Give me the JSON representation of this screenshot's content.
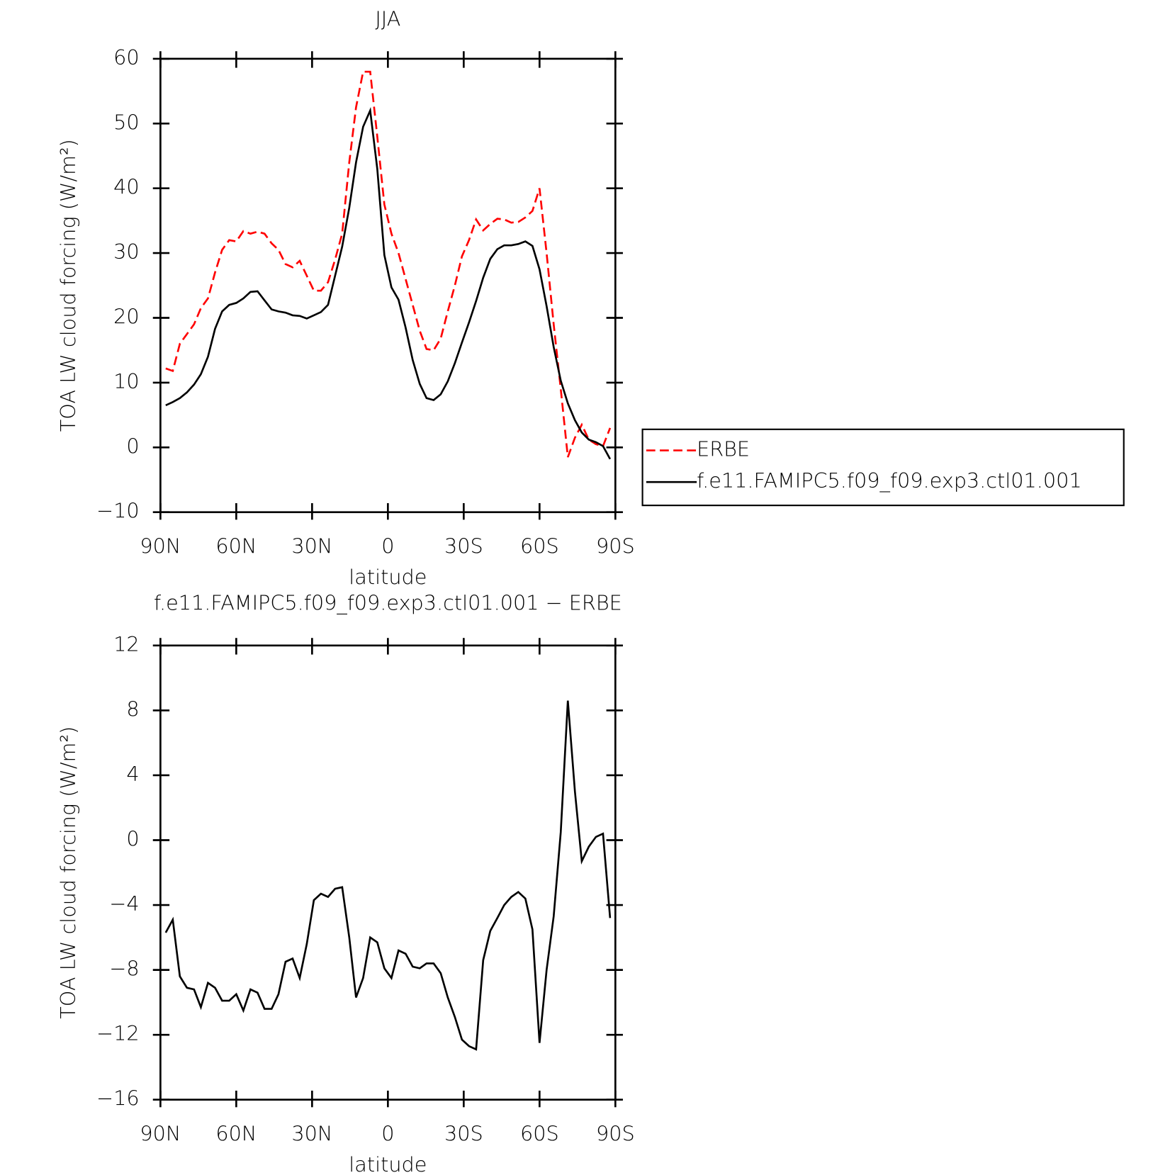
{
  "chart_data": [
    {
      "type": "line",
      "title": "JJA",
      "x_label": "latitude",
      "y_label": "TOA LW cloud forcing (W/m²)",
      "x": [
        87.9,
        85.1,
        82.3,
        79.5,
        76.7,
        74.0,
        71.2,
        68.4,
        65.6,
        62.8,
        60.0,
        57.2,
        54.4,
        51.6,
        48.8,
        46.0,
        43.3,
        40.5,
        37.7,
        34.9,
        32.1,
        29.3,
        26.5,
        23.7,
        20.9,
        18.1,
        15.3,
        12.6,
        9.8,
        7.0,
        4.2,
        1.4,
        -1.4,
        -4.2,
        -7.0,
        -9.8,
        -12.6,
        -15.3,
        -18.1,
        -20.9,
        -23.7,
        -26.5,
        -29.3,
        -32.1,
        -34.9,
        -37.7,
        -40.5,
        -43.3,
        -46.0,
        -48.8,
        -51.6,
        -54.4,
        -57.2,
        -60.0,
        -62.8,
        -65.6,
        -68.4,
        -71.2,
        -74.0,
        -76.7,
        -79.5,
        -82.3,
        -85.1,
        -87.9
      ],
      "xlim": [
        90,
        -90
      ],
      "xticks": [
        {
          "value": 90,
          "label": "90N"
        },
        {
          "value": 60,
          "label": "60N"
        },
        {
          "value": 30,
          "label": "30N"
        },
        0,
        {
          "value": -30,
          "label": "30S"
        },
        {
          "value": -60,
          "label": "60S"
        },
        {
          "value": -90,
          "label": "90S"
        }
      ],
      "ylim": [
        -10,
        60
      ],
      "yticks": [
        {
          "value": -10,
          "label": "−10"
        },
        0,
        10,
        20,
        30,
        40,
        50,
        60
      ],
      "legend": "right",
      "series": [
        {
          "name": "ERBE",
          "color": "#ff0000",
          "linestyle": "dashed",
          "values": [
            12.2,
            11.8,
            16,
            17.5,
            19,
            21.5,
            23,
            27,
            30.5,
            32,
            31.8,
            33.4,
            33,
            33.3,
            33,
            31.5,
            30.5,
            28.3,
            27.8,
            28.8,
            26.5,
            24.2,
            24.2,
            25.5,
            29,
            33,
            44,
            52.5,
            58,
            58,
            48,
            37.5,
            33,
            30,
            26,
            22,
            18,
            15.2,
            15,
            16.8,
            21,
            25,
            29.5,
            32,
            35.2,
            33.5,
            34.5,
            35.3,
            35.2,
            34.7,
            34.8,
            35.5,
            36.5,
            40,
            30,
            19,
            9,
            -1.5,
            1.5,
            3.5,
            1.2,
            0.5,
            0.2,
            3
          ]
        },
        {
          "name": "f.e11.FAMIPC5.f09_f09.exp3.ctl01.001",
          "color": "#000000",
          "linestyle": "solid",
          "values": [
            6.5,
            7,
            7.6,
            8.5,
            9.7,
            11.3,
            14,
            18.3,
            21,
            22,
            22.3,
            23,
            24,
            24.1,
            22.7,
            21.3,
            21,
            20.8,
            20.4,
            20.3,
            19.9,
            20.4,
            20.9,
            22,
            26.5,
            31,
            37,
            44,
            49.5,
            52,
            43,
            29.7,
            24.7,
            22.8,
            18.5,
            13.5,
            9.8,
            7.6,
            7.3,
            8.2,
            10.2,
            13,
            16.2,
            19.3,
            22.6,
            26.2,
            29.1,
            30.6,
            31.2,
            31.2,
            31.4,
            31.8,
            31.1,
            27.5,
            21.8,
            15.5,
            10.3,
            6.8,
            4.2,
            2.3,
            1.2,
            0.8,
            0.2,
            -1.8
          ]
        }
      ]
    },
    {
      "type": "line",
      "title": "f.e11.FAMIPC5.f09_f09.exp3.ctl01.001 − ERBE",
      "x_label": "latitude",
      "y_label": "TOA LW cloud forcing (W/m²)",
      "x": [
        87.9,
        85.1,
        82.3,
        79.5,
        76.7,
        74.0,
        71.2,
        68.4,
        65.6,
        62.8,
        60.0,
        57.2,
        54.4,
        51.6,
        48.8,
        46.0,
        43.3,
        40.5,
        37.7,
        34.9,
        32.1,
        29.3,
        26.5,
        23.7,
        20.9,
        18.1,
        15.3,
        12.6,
        9.8,
        7.0,
        4.2,
        1.4,
        -1.4,
        -4.2,
        -7.0,
        -9.8,
        -12.6,
        -15.3,
        -18.1,
        -20.9,
        -23.7,
        -26.5,
        -29.3,
        -32.1,
        -34.9,
        -37.7,
        -40.5,
        -43.3,
        -46.0,
        -48.8,
        -51.6,
        -54.4,
        -57.2,
        -60.0,
        -62.8,
        -65.6,
        -68.4,
        -71.2,
        -74.0,
        -76.7,
        -79.5,
        -82.3,
        -85.1,
        -87.9
      ],
      "xlim": [
        90,
        -90
      ],
      "xticks": [
        {
          "value": 90,
          "label": "90N"
        },
        {
          "value": 60,
          "label": "60N"
        },
        {
          "value": 30,
          "label": "30N"
        },
        0,
        {
          "value": -30,
          "label": "30S"
        },
        {
          "value": -60,
          "label": "60S"
        },
        {
          "value": -90,
          "label": "90S"
        }
      ],
      "ylim": [
        -16,
        12
      ],
      "yticks": [
        {
          "value": -16,
          "label": "−16"
        },
        {
          "value": -12,
          "label": "−12"
        },
        {
          "value": -8,
          "label": "−8"
        },
        {
          "value": -4,
          "label": "−4"
        },
        0,
        4,
        8,
        12
      ],
      "color": "#000000",
      "values": [
        -5.7,
        -4.9,
        -8.4,
        -9.1,
        -9.2,
        -10.3,
        -8.8,
        -9.1,
        -9.9,
        -9.9,
        -9.5,
        -10.5,
        -9.2,
        -9.4,
        -10.4,
        -10.4,
        -9.5,
        -7.5,
        -7.3,
        -8.5,
        -6.4,
        -3.7,
        -3.3,
        -3.5,
        -3,
        -2.9,
        -6,
        -9.7,
        -8.5,
        -6,
        -6.3,
        -7.9,
        -8.5,
        -6.8,
        -7,
        -7.8,
        -7.9,
        -7.6,
        -7.6,
        -8.2,
        -9.7,
        -10.9,
        -12.3,
        -12.7,
        -12.9,
        -7.4,
        -5.6,
        -4.8,
        -4,
        -3.5,
        -3.2,
        -3.6,
        -5.5,
        -12.5,
        -8,
        -4.7,
        0.5,
        8.6,
        3,
        -1.3,
        -0.4,
        0.2,
        0.4,
        -4.8
      ]
    }
  ]
}
